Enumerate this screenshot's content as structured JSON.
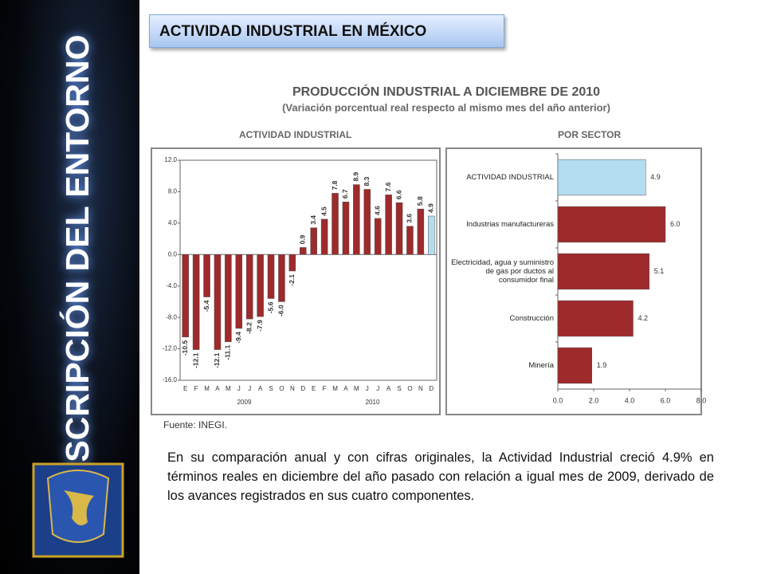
{
  "header": {
    "title": "ACTIVIDAD INDUSTRIAL EN MÉXICO"
  },
  "sidebar": {
    "title": "DESCRIPCIÓN DEL ENTORNO"
  },
  "figure": {
    "title": "PRODUCCIÓN INDUSTRIAL A DICIEMBRE DE 2010",
    "subtitle": "(Variación porcentual real respecto al mismo mes del año anterior)",
    "source": "Fuente: INEGI."
  },
  "chart_data": [
    {
      "type": "bar",
      "title": "ACTIVIDAD INDUSTRIAL",
      "categories": [
        "E",
        "F",
        "M",
        "A",
        "M",
        "J",
        "J",
        "A",
        "S",
        "O",
        "N",
        "D",
        "E",
        "F",
        "M",
        "A",
        "M",
        "J",
        "J",
        "A",
        "S",
        "O",
        "N",
        "D"
      ],
      "year_labels": [
        "2009",
        "2010"
      ],
      "values": [
        -10.5,
        -12.1,
        -5.4,
        -12.1,
        -11.1,
        -9.4,
        -8.2,
        -7.9,
        -5.6,
        -6.0,
        -2.1,
        0.9,
        3.4,
        4.5,
        7.8,
        6.7,
        8.9,
        8.3,
        4.6,
        7.6,
        6.6,
        3.6,
        5.8,
        4.9
      ],
      "value_labels": [
        "-10.5",
        "-12.1",
        "-5.4",
        "-12.1",
        "-11.1",
        "-9.4",
        "-8.2",
        "-7.9",
        "-5.6",
        "-6.0",
        "-2.1",
        "0.9",
        "3.4",
        "4.5",
        "7.8",
        "6.7",
        "8.9",
        "8.3",
        "4.6",
        "7.6",
        "6.6",
        "3.6",
        "5.8",
        "4.9"
      ],
      "colors": [
        "#9e2a2b",
        "#9e2a2b",
        "#9e2a2b",
        "#9e2a2b",
        "#9e2a2b",
        "#9e2a2b",
        "#9e2a2b",
        "#9e2a2b",
        "#9e2a2b",
        "#9e2a2b",
        "#9e2a2b",
        "#9e2a2b",
        "#9e2a2b",
        "#9e2a2b",
        "#9e2a2b",
        "#9e2a2b",
        "#9e2a2b",
        "#9e2a2b",
        "#9e2a2b",
        "#9e2a2b",
        "#9e2a2b",
        "#9e2a2b",
        "#9e2a2b",
        "#b4dcef"
      ],
      "ylim": [
        -16,
        12
      ],
      "yticks": [
        {
          "value": 12,
          "label": "12.0"
        },
        {
          "value": 8,
          "label": "8.0"
        },
        {
          "value": 4,
          "label": "4.0"
        },
        {
          "value": 0,
          "label": "0.0"
        },
        {
          "value": -4,
          "label": "-4.0"
        },
        {
          "value": -8,
          "label": "-8.0"
        },
        {
          "value": -12,
          "label": "-12.0"
        },
        {
          "value": -16,
          "label": "-16.0"
        }
      ]
    },
    {
      "type": "barh",
      "title": "POR SECTOR",
      "categories": [
        "ACTIVIDAD INDUSTRIAL",
        "Industrias manufactureras",
        "Electricidad, agua y suministro de gas por ductos al consumidor final",
        "Construcción",
        "Minería"
      ],
      "values": [
        4.9,
        6.0,
        5.1,
        4.2,
        1.9
      ],
      "value_labels": [
        "4.9",
        "6.0",
        "5.1",
        "4.2",
        "1.9"
      ],
      "colors": [
        "#b4dcef",
        "#9e2a2b",
        "#9e2a2b",
        "#9e2a2b",
        "#9e2a2b"
      ],
      "xlim": [
        0,
        8
      ],
      "xticks": [
        {
          "value": 0,
          "label": "0.0"
        },
        {
          "value": 2,
          "label": "2.0"
        },
        {
          "value": 4,
          "label": "4.0"
        },
        {
          "value": 6,
          "label": "6.0"
        },
        {
          "value": 8,
          "label": "8.0"
        }
      ]
    }
  ],
  "body": {
    "text": "En su comparación anual y con cifras originales, la Actividad Industrial creció 4.9% en términos reales en diciembre del año pasado con relación a igual mes de 2009, derivado de los avances registrados en sus cuatro componentes."
  }
}
